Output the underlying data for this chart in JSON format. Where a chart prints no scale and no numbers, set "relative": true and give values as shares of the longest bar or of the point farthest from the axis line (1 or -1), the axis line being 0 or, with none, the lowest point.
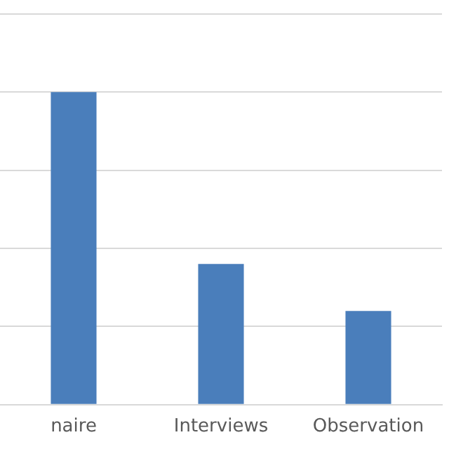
{
  "chart_data": {
    "type": "bar",
    "categories": [
      "naire",
      "Interviews",
      "Observation"
    ],
    "values": [
      1,
      0.45,
      0.3
    ],
    "color": "#4a7ebb",
    "relative": true,
    "grid": "y"
  }
}
